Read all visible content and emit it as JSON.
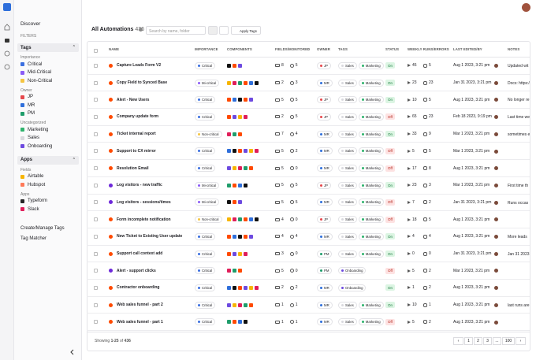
{
  "sidebar": {
    "discover": "Discover",
    "filters": "FILTERS",
    "groups": [
      {
        "title": "Tags",
        "sections": [
          {
            "label": "Importance",
            "items": [
              {
                "name": "Critical",
                "color": "#3b6fe0"
              },
              {
                "name": "Mid-Critical",
                "color": "#8b5cf6"
              },
              {
                "name": "Non-Critical",
                "color": "#f5c542"
              }
            ]
          },
          {
            "label": "Owner",
            "items": [
              {
                "name": "JP",
                "color": "#e5484d"
              },
              {
                "name": "MR",
                "color": "#2f6fdb"
              },
              {
                "name": "PM",
                "color": "#1f9d6b"
              }
            ]
          },
          {
            "label": "Uncategorized",
            "items": [
              {
                "name": "Marketing",
                "color": "#2fb36d"
              },
              {
                "name": "Sales",
                "color": "#d9d9de"
              },
              {
                "name": "Onboarding",
                "color": "#6d4ae0"
              }
            ]
          }
        ]
      },
      {
        "title": "Apps",
        "sections": [
          {
            "label": "Fields",
            "items": [
              {
                "name": "Airtable",
                "color": "#f7b500"
              },
              {
                "name": "Hubspot",
                "color": "#ff7a59"
              }
            ]
          },
          {
            "label": "Apps",
            "items": [
              {
                "name": "Typeform",
                "color": "#262627"
              },
              {
                "name": "Slack",
                "color": "#e01e5a"
              }
            ]
          }
        ]
      }
    ],
    "links": [
      "Create/Manage Tags",
      "Tag Matcher"
    ]
  },
  "header": {
    "title": "All Automations",
    "count": 436,
    "search_placeholder": "Search by name, folder",
    "apply_tags": "Apply Tags"
  },
  "table": {
    "columns": [
      "NAME",
      "IMPORTANCE",
      "COMPONENTS",
      "FIELDS/MONITORED",
      "OWNER",
      "TAGS",
      "STATUS",
      "WEEKLY RUNS/ERRORS",
      "LAST EDITED/BY",
      "NOTES"
    ],
    "rows": [
      {
        "name": "Capture Leads Form V2",
        "importance": "Critical",
        "fields": 8,
        "monitored": 5,
        "owner": "JP",
        "tags": [
          "Sales",
          "Marketing"
        ],
        "status": "On",
        "runs": 45,
        "errors": 5,
        "last_edited": "Aug 1 2023, 3:21 pm",
        "notes": "Updated wit"
      },
      {
        "name": "Copy Field to Synced Base",
        "importance": "Mi-critical",
        "fields": 2,
        "monitored": 3,
        "owner": "MR",
        "tags": [
          "Sales",
          "Marketing"
        ],
        "status": "On",
        "runs": 23,
        "errors": 23,
        "last_edited": "Jan 31 2023, 3:21 pm",
        "notes": "Docs: https://"
      },
      {
        "name": "Alert - New Users",
        "importance": "Critical",
        "fields": 5,
        "monitored": 5,
        "owner": "JP",
        "tags": [
          "Sales",
          "Marketing"
        ],
        "status": "On",
        "runs": 10,
        "errors": 5,
        "last_edited": "Aug 1 2023, 3:21 pm",
        "notes": "No longer re"
      },
      {
        "name": "Company update form",
        "importance": "Critical",
        "fields": 2,
        "monitored": 5,
        "owner": "JP",
        "tags": [
          "Sales",
          "Marketing"
        ],
        "status": "Off",
        "runs": 65,
        "errors": 23,
        "last_edited": "Feb 18 2023, 9:19 pm",
        "notes": "Last time we"
      },
      {
        "name": "Ticket internal report",
        "importance": "Non-critical",
        "fields": 7,
        "monitored": 4,
        "owner": "MR",
        "tags": [
          "Sales",
          "Marketing"
        ],
        "status": "On",
        "runs": 33,
        "errors": 9,
        "last_edited": "Mar 1 2023, 3:21 pm",
        "notes": "sometimes e"
      },
      {
        "name": "Support to CX mirror",
        "importance": "Critical",
        "fields": 5,
        "monitored": 2,
        "owner": "MR",
        "tags": [
          "Sales",
          "Marketing"
        ],
        "status": "Off",
        "runs": 5,
        "errors": 5,
        "last_edited": "Mar 1 2023, 3:21 pm",
        "notes": null
      },
      {
        "name": "Resolution Email",
        "importance": "Critical",
        "fields": 5,
        "monitored": 0,
        "owner": "MR",
        "tags": [
          "Sales",
          "Marketing"
        ],
        "status": "Off",
        "runs": 17,
        "errors": 8,
        "last_edited": "Aug 1 2023, 3:21 pm",
        "notes": null
      },
      {
        "name": "Log visitors - new traffic",
        "importance": "Mi-critical",
        "fields": 5,
        "monitored": 5,
        "owner": "JP",
        "tags": [
          "Sales",
          "Marketing"
        ],
        "status": "On",
        "runs": 23,
        "errors": 3,
        "last_edited": "Mar 1 2023, 3:21 pm",
        "notes": "First time th"
      },
      {
        "name": "Log visitors - sessions/times",
        "importance": "Mi-critical",
        "fields": 5,
        "monitored": 5,
        "owner": "MR",
        "tags": [
          "Sales",
          "Marketing"
        ],
        "status": "Off",
        "runs": 7,
        "errors": 2,
        "last_edited": "Jan 31 2023, 3:21 pm",
        "notes": "Runs occas"
      },
      {
        "name": "Form incomplete notification",
        "importance": "Non-critical",
        "fields": 4,
        "monitored": 0,
        "owner": "JP",
        "tags": [
          "Sales",
          "Marketing"
        ],
        "status": "Off",
        "runs": 18,
        "errors": 5,
        "last_edited": "Aug 1 2023, 3:21 pm",
        "notes": null
      },
      {
        "name": "New Ticket to Existing User update",
        "importance": "Critical",
        "fields": 4,
        "monitored": 4,
        "owner": "MR",
        "tags": [
          "Sales",
          "Marketing"
        ],
        "status": "On",
        "runs": 4,
        "errors": 4,
        "last_edited": "Aug 1 2023, 3:21 pm",
        "notes": "More leads"
      },
      {
        "name": "Support call context add",
        "importance": "Critical",
        "fields": 3,
        "monitored": 0,
        "owner": "PM",
        "tags": [
          "Sales",
          "Marketing"
        ],
        "status": "On",
        "runs": 0,
        "errors": 0,
        "last_edited": "Jan 31 2023, 3:21 pm",
        "notes": "Jan 31 2023"
      },
      {
        "name": "Alert - support clicks",
        "importance": "Critical",
        "fields": 5,
        "monitored": 0,
        "owner": "PM",
        "tags": [
          "Onboarding"
        ],
        "status": "Off",
        "runs": 5,
        "errors": 2,
        "last_edited": "Mar 1 2023, 3:21 pm",
        "notes": null
      },
      {
        "name": "Contractor onboarding",
        "importance": "Critical",
        "fields": 2,
        "monitored": 2,
        "owner": "MR",
        "tags": [
          "Onboarding"
        ],
        "status": "On",
        "runs": 1,
        "errors": 2,
        "last_edited": "Aug 1 2023, 3:21 pm",
        "notes": null
      },
      {
        "name": "Web sales funnel - part 2",
        "importance": "Critical",
        "fields": 1,
        "monitored": 1,
        "owner": "MR",
        "tags": [
          "Sales",
          "Marketing"
        ],
        "status": "On",
        "runs": 10,
        "errors": 1,
        "last_edited": "Aug 1 2023, 3:21 pm",
        "notes": "last runs are"
      },
      {
        "name": "Web sales funnel - part 1",
        "importance": "Critical",
        "fields": 1,
        "monitored": 1,
        "owner": "MR",
        "tags": [
          "Sales",
          "Marketing"
        ],
        "status": "Off",
        "runs": 5,
        "errors": 2,
        "last_edited": "Aug 1 2023, 3:21 pm",
        "notes": null
      }
    ]
  },
  "footer": {
    "showing": "Showing",
    "range": "1-25",
    "of": "of",
    "total": 436,
    "pages": [
      1,
      2,
      3,
      "...",
      100
    ]
  }
}
